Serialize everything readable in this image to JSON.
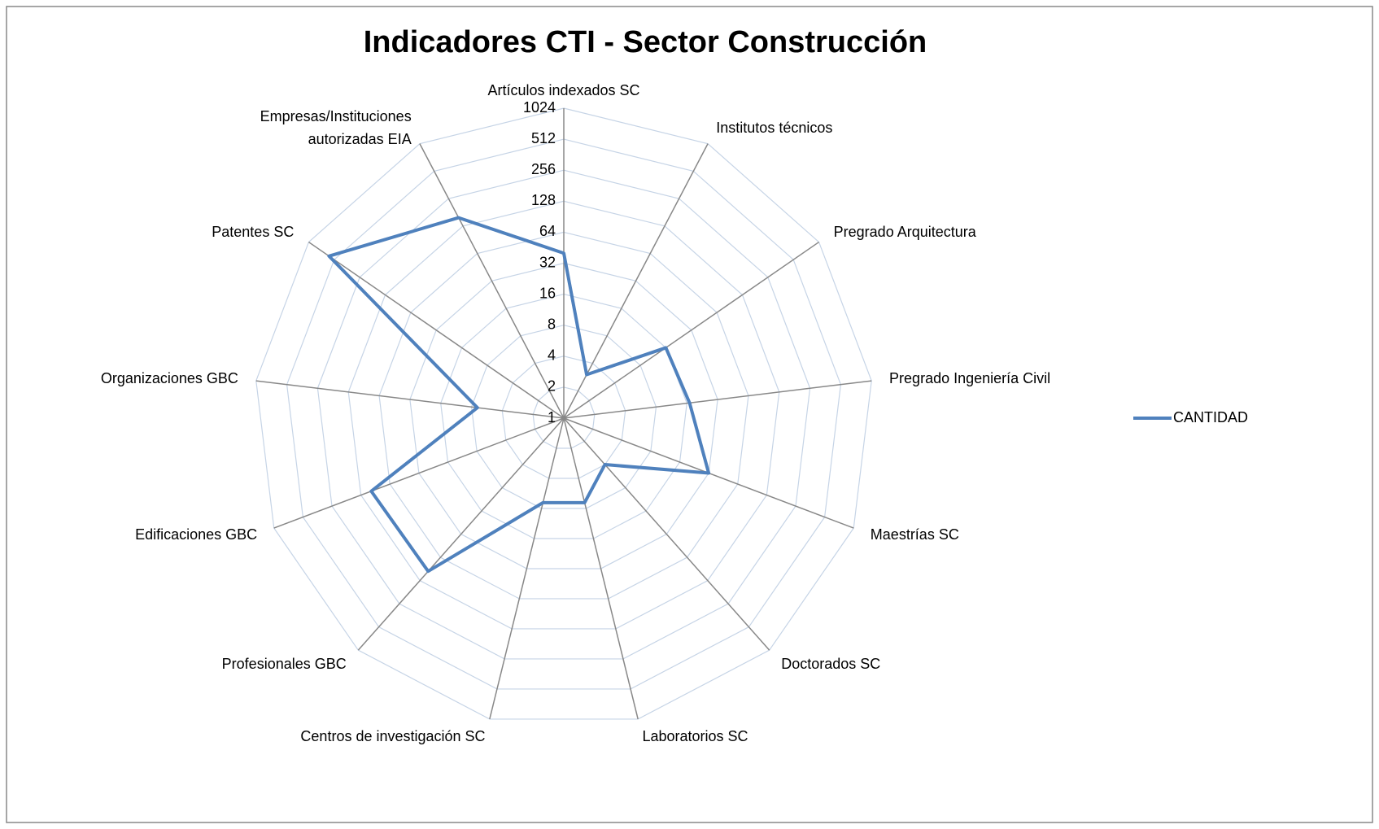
{
  "chart_data": {
    "type": "radar",
    "title": "Indicadores CTI - Sector Construcción",
    "categories": [
      "Artículos indexados SC",
      "Institutos técnicos",
      "Pregrado Arquitectura",
      "Pregrado Ingeniería Civil",
      "Maestrías SC",
      "Doctorados SC",
      "Laboratorios SC",
      "Centros de investigación SC",
      "Profesionales GBC",
      "Edificaciones GBC",
      "Organizaciones GBC",
      "Patentes SC",
      "Empresas/Instituciones autorizadas EIA"
    ],
    "series": [
      {
        "name": "CANTIDAD",
        "color": "#4f81bd",
        "values": [
          40,
          3,
          16,
          17,
          32,
          4,
          7,
          7,
          97,
          100,
          7,
          590,
          158
        ]
      }
    ],
    "ylim": [
      1,
      1024
    ],
    "yticks": [
      1,
      2,
      4,
      8,
      16,
      32,
      64,
      128,
      256,
      512,
      1024
    ],
    "log_scale": true,
    "grid": true,
    "legend": "right"
  }
}
